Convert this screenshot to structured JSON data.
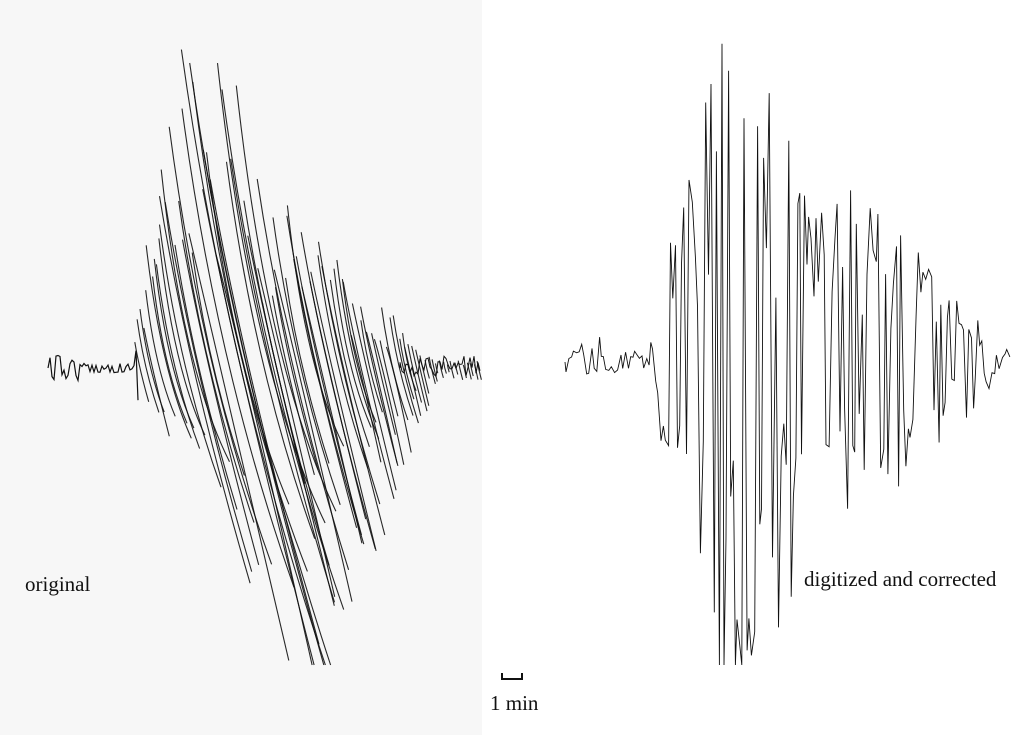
{
  "labels": {
    "left": "original",
    "right": "digitized and corrected",
    "scale": "1 min"
  }
}
